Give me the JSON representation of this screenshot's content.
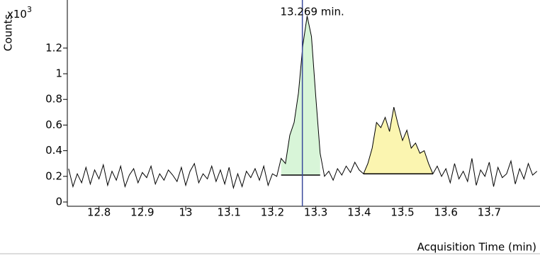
{
  "chart_data": {
    "type": "line",
    "y_label": "Counts",
    "y_multiplier": "x10",
    "y_multiplier_exp": "3",
    "x_label": "Acquisition Time (min)",
    "annotation": "13.269 min.",
    "marker_x": 13.269,
    "marker_color": "#3b4a9c",
    "xlim": [
      12.727,
      13.817
    ],
    "xticks": [
      12.8,
      12.9,
      13,
      13.1,
      13.2,
      13.3,
      13.4,
      13.5,
      13.6,
      13.7
    ],
    "ylim": [
      0,
      1.575
    ],
    "yticks": [
      0,
      0.2,
      0.4,
      0.6,
      0.8,
      1,
      1.2
    ],
    "x": [
      12.73,
      12.74,
      12.75,
      12.76,
      12.77,
      12.78,
      12.79,
      12.8,
      12.81,
      12.82,
      12.83,
      12.84,
      12.85,
      12.86,
      12.87,
      12.88,
      12.89,
      12.9,
      12.91,
      12.92,
      12.93,
      12.94,
      12.95,
      12.96,
      12.97,
      12.98,
      12.99,
      13,
      13.01,
      13.02,
      13.03,
      13.04,
      13.05,
      13.06,
      13.07,
      13.08,
      13.09,
      13.1,
      13.11,
      13.12,
      13.13,
      13.14,
      13.15,
      13.16,
      13.17,
      13.18,
      13.19,
      13.2,
      13.21,
      13.22,
      13.23,
      13.24,
      13.25,
      13.26,
      13.27,
      13.28,
      13.29,
      13.3,
      13.31,
      13.32,
      13.33,
      13.34,
      13.35,
      13.36,
      13.37,
      13.38,
      13.39,
      13.4,
      13.41,
      13.42,
      13.43,
      13.44,
      13.45,
      13.46,
      13.47,
      13.48,
      13.49,
      13.5,
      13.51,
      13.52,
      13.53,
      13.54,
      13.55,
      13.56,
      13.57,
      13.58,
      13.59,
      13.6,
      13.61,
      13.62,
      13.63,
      13.64,
      13.65,
      13.66,
      13.67,
      13.68,
      13.69,
      13.7,
      13.71,
      13.72,
      13.73,
      13.74,
      13.75,
      13.76,
      13.77,
      13.78,
      13.79,
      13.8,
      13.81
    ],
    "values": [
      0.26,
      0.12,
      0.22,
      0.15,
      0.27,
      0.14,
      0.25,
      0.18,
      0.29,
      0.13,
      0.24,
      0.17,
      0.28,
      0.12,
      0.21,
      0.26,
      0.15,
      0.23,
      0.19,
      0.28,
      0.14,
      0.22,
      0.17,
      0.25,
      0.21,
      0.16,
      0.27,
      0.13,
      0.24,
      0.3,
      0.15,
      0.22,
      0.18,
      0.28,
      0.16,
      0.25,
      0.14,
      0.27,
      0.11,
      0.22,
      0.12,
      0.24,
      0.19,
      0.26,
      0.17,
      0.28,
      0.13,
      0.22,
      0.2,
      0.34,
      0.3,
      0.52,
      0.62,
      0.85,
      1.22,
      1.45,
      1.29,
      0.82,
      0.38,
      0.2,
      0.24,
      0.17,
      0.26,
      0.21,
      0.28,
      0.23,
      0.31,
      0.25,
      0.22,
      0.3,
      0.42,
      0.62,
      0.58,
      0.66,
      0.55,
      0.74,
      0.6,
      0.48,
      0.56,
      0.42,
      0.46,
      0.38,
      0.4,
      0.3,
      0.22,
      0.28,
      0.2,
      0.26,
      0.15,
      0.3,
      0.18,
      0.24,
      0.16,
      0.34,
      0.13,
      0.25,
      0.2,
      0.31,
      0.12,
      0.27,
      0.19,
      0.22,
      0.32,
      0.14,
      0.26,
      0.18,
      0.3,
      0.21,
      0.24
    ],
    "color": "#000000",
    "peaks": [
      {
        "start": 13.22,
        "end": 13.31,
        "baseline": 0.21,
        "color": "#d8f5d8"
      },
      {
        "start": 13.41,
        "end": 13.57,
        "baseline": 0.22,
        "color": "#fbf5b0"
      }
    ]
  }
}
